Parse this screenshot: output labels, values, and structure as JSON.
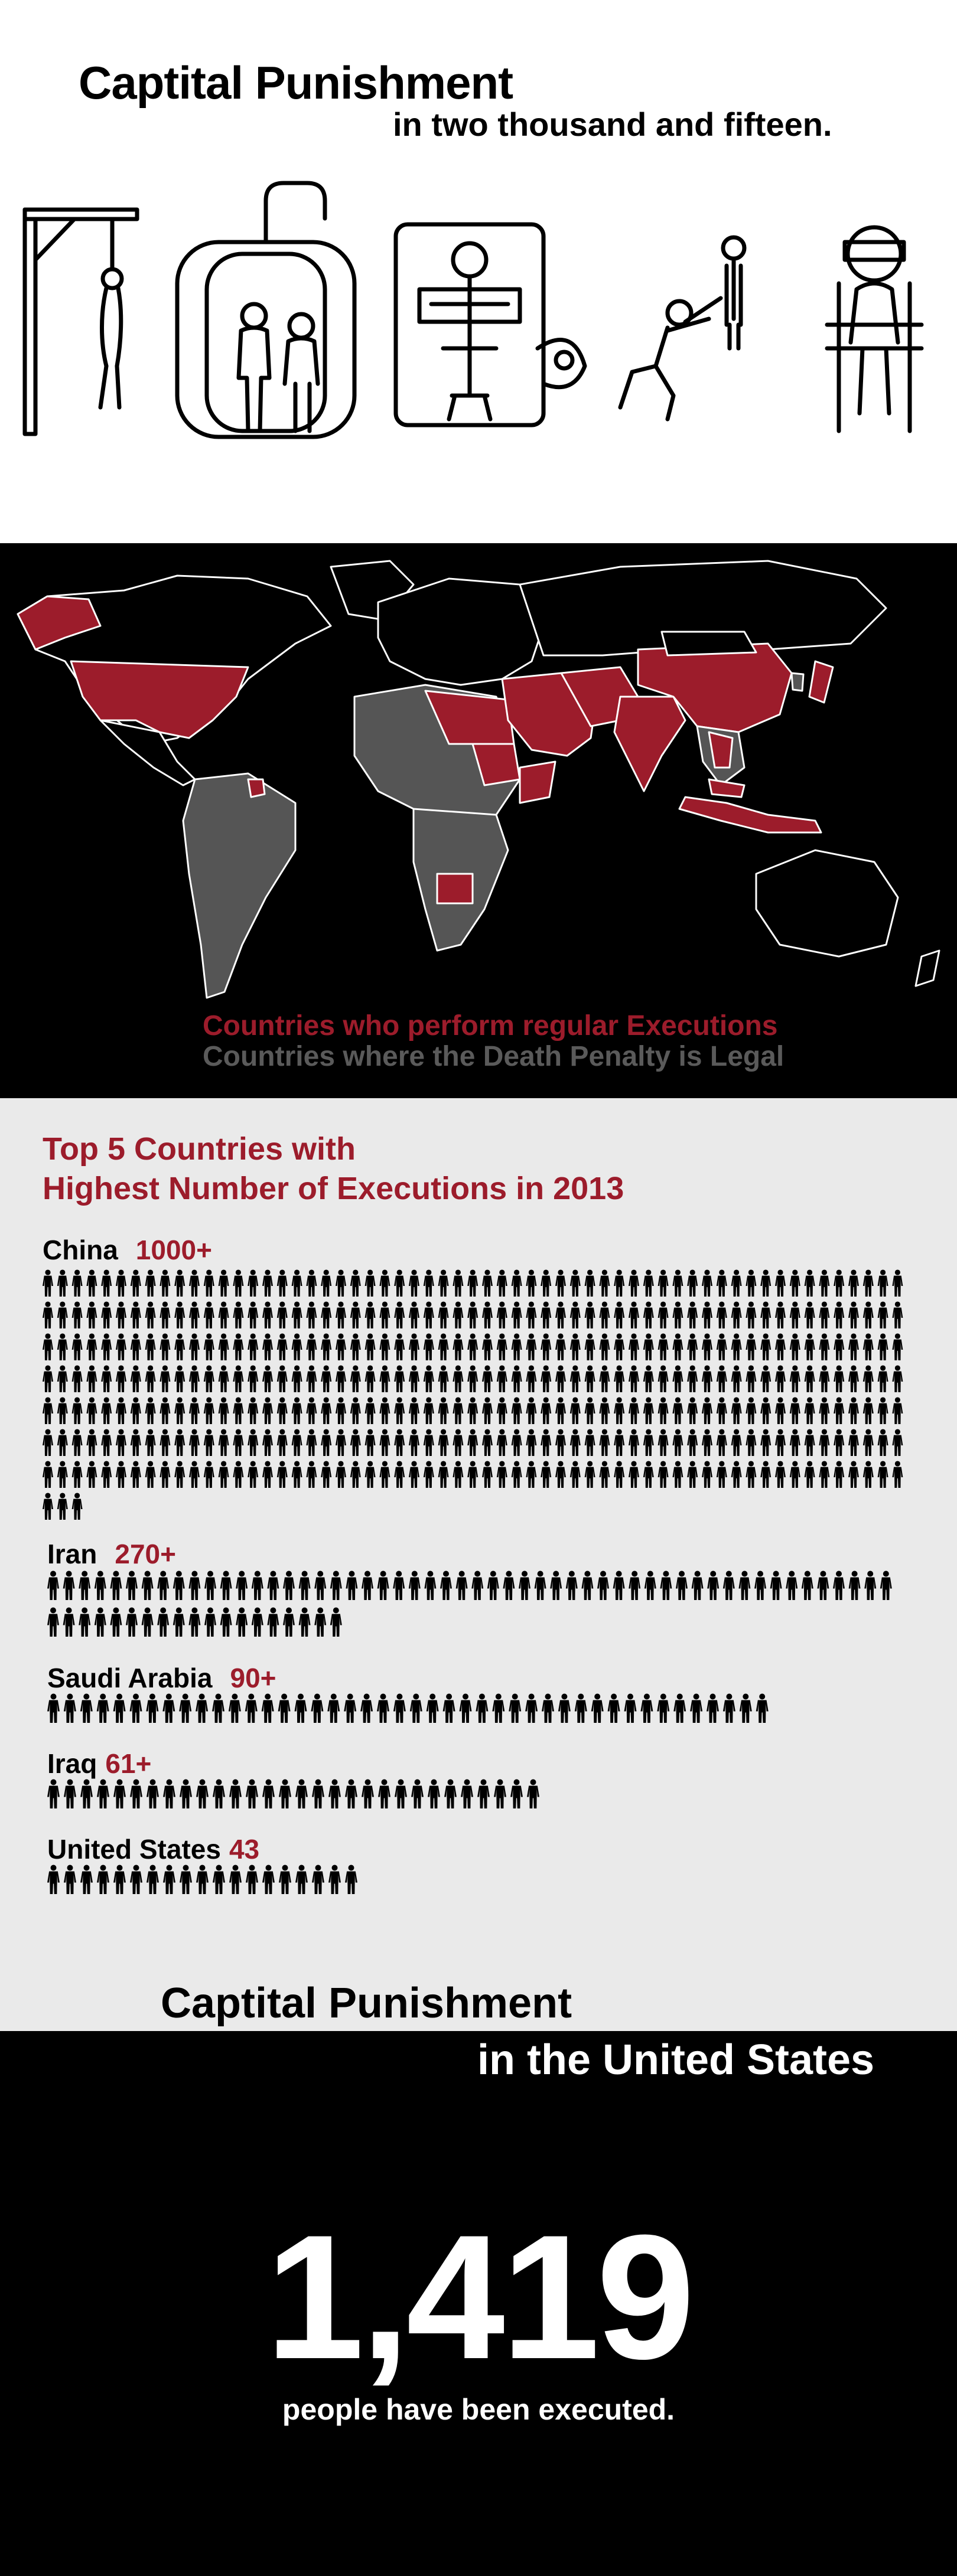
{
  "hero": {
    "title": "Captital Punishment",
    "subtitle": "in two thousand and fifteen.",
    "icons": [
      "gallows-icon",
      "gas-chamber-icon",
      "lethal-injection-table-icon",
      "firing-squad-icon",
      "electric-chair-icon"
    ]
  },
  "map": {
    "legend_regular": "Countries who perform regular Executions",
    "legend_legal": "Countries where the Death Penalty is Legal",
    "colors": {
      "regular": "#9c1c2b",
      "legal": "#4f4f4f",
      "other": "#000000",
      "border": "#ffffff"
    }
  },
  "top5": {
    "title_line1": "Top 5 Countries with",
    "title_line2": "Highest Number of Executions in 2013",
    "countries": [
      {
        "name": "China",
        "value": "1000+",
        "figures": 416
      },
      {
        "name": "Iran",
        "value": "270+",
        "figures": 73
      },
      {
        "name": "Saudi Arabia",
        "value": "90+",
        "figures": 44
      },
      {
        "name": "Iraq",
        "value": "61+",
        "figures": 30
      },
      {
        "name": "United States",
        "value": "43",
        "figures": 19
      }
    ]
  },
  "us": {
    "title": "Captital Punishment",
    "subtitle": "in the United States",
    "number": "1,419",
    "caption": "people have been executed."
  }
}
